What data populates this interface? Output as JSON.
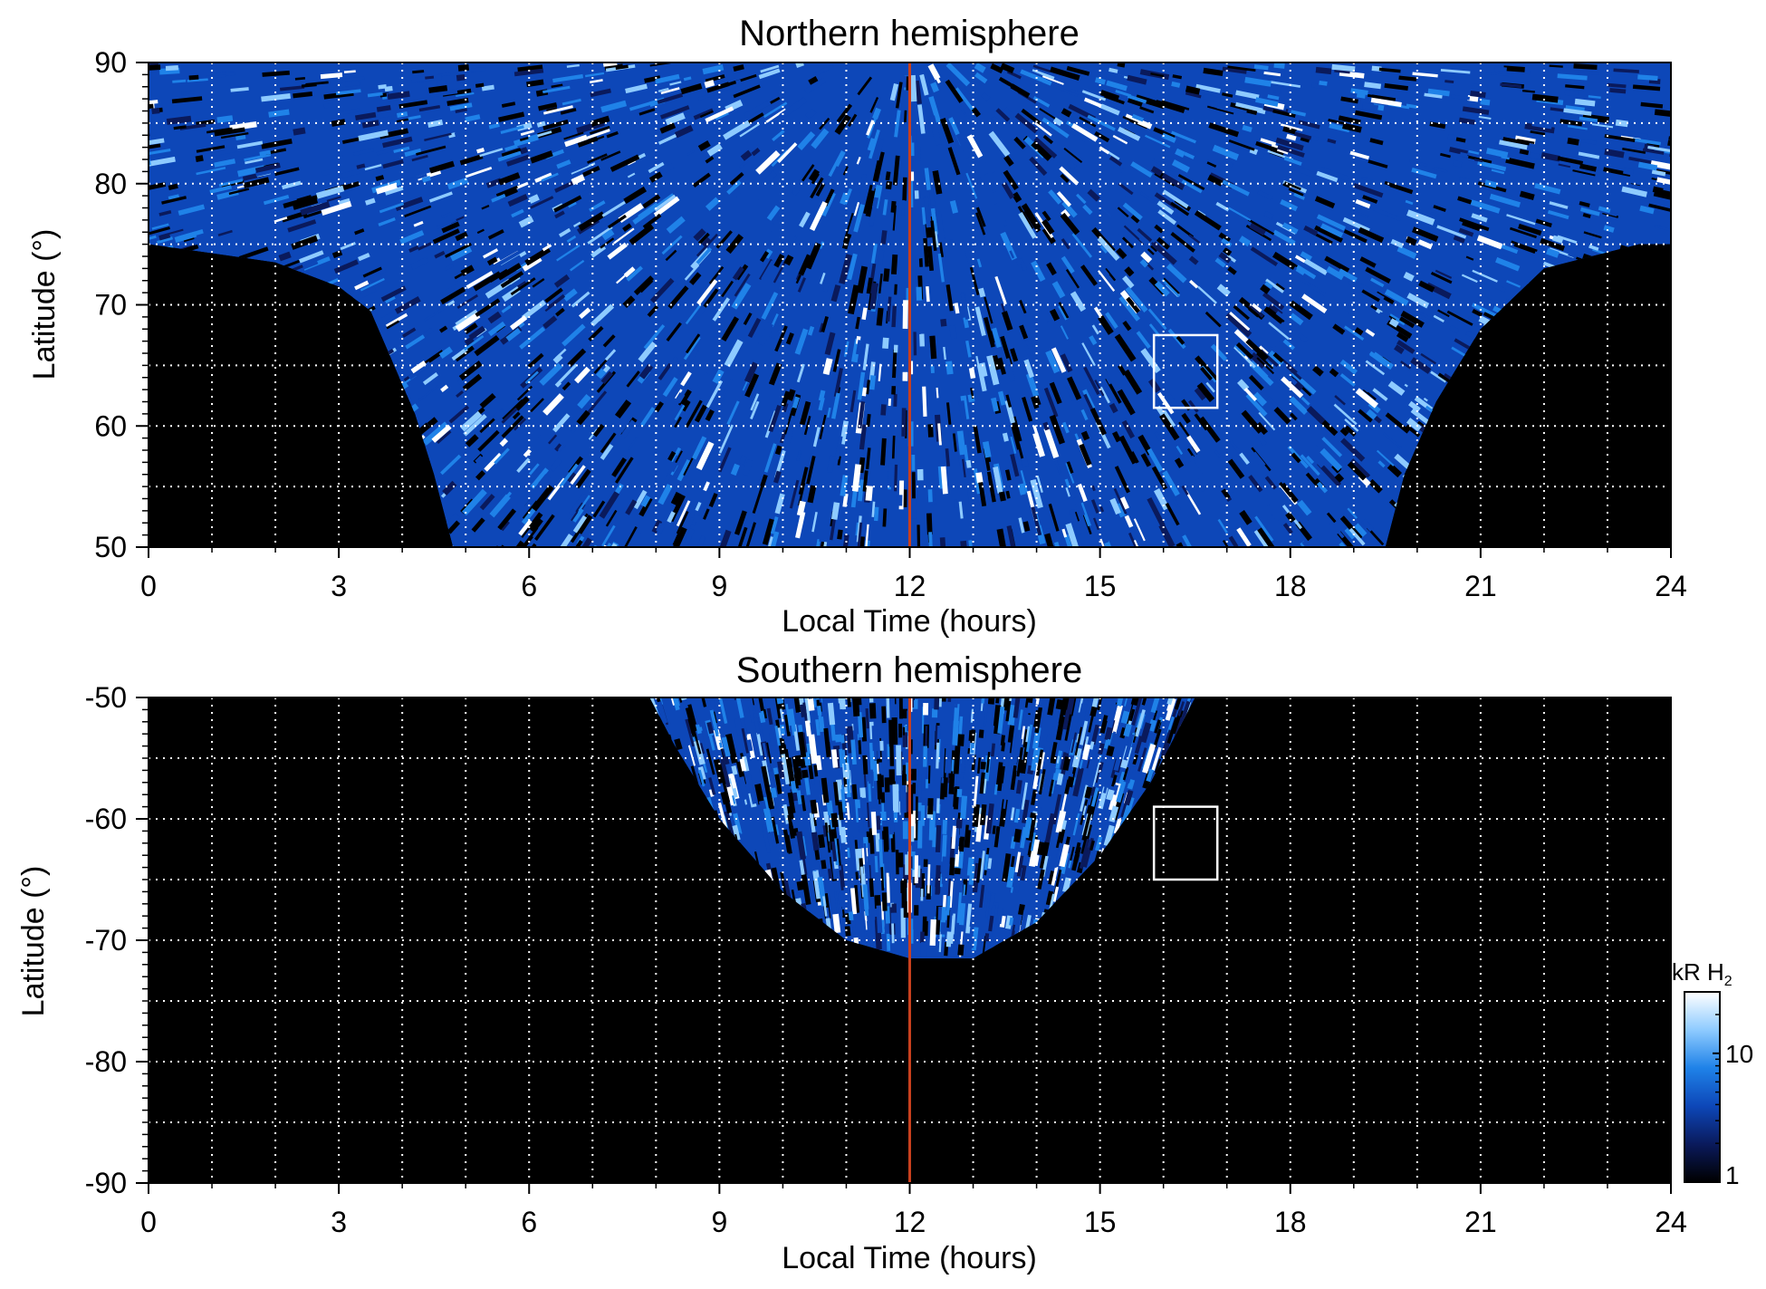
{
  "chart_data": [
    {
      "type": "heatmap",
      "title": "Northern hemisphere",
      "xlabel": "Local Time (hours)",
      "ylabel": "Latitude (°)",
      "xlim": [
        0,
        24
      ],
      "ylim": [
        50,
        90
      ],
      "xticks": [
        "0",
        "3",
        "6",
        "9",
        "12",
        "15",
        "18",
        "21",
        "24"
      ],
      "xtick_values": [
        0,
        3,
        6,
        9,
        12,
        15,
        18,
        21,
        24
      ],
      "yticks": [
        "50",
        "60",
        "70",
        "80",
        "90"
      ],
      "ytick_values": [
        50,
        60,
        70,
        80,
        90
      ],
      "x_dotted_grid_step": 1,
      "y_dotted_grid": [
        55,
        60,
        65,
        70,
        75,
        80,
        85
      ],
      "reference_line_x": 12,
      "reference_line_color": "#c8401e",
      "box": {
        "x": [
          15.85,
          16.85
        ],
        "y": [
          61.5,
          67.5
        ]
      },
      "coverage": "emission fills latitudes >= 75 at all local times; lower edge descends to 50 between about 4.4 and 19.7 h",
      "coverage_curve": [
        [
          0,
          75
        ],
        [
          2,
          73.5
        ],
        [
          3,
          71.5
        ],
        [
          3.5,
          69.5
        ],
        [
          4.2,
          61
        ],
        [
          4.5,
          56
        ],
        [
          4.8,
          50
        ],
        [
          19.5,
          50
        ],
        [
          19.8,
          56
        ],
        [
          20.3,
          62
        ],
        [
          21,
          68
        ],
        [
          22,
          73
        ],
        [
          23.5,
          75
        ],
        [
          24,
          75
        ]
      ]
    },
    {
      "type": "heatmap",
      "title": "Southern hemisphere",
      "xlabel": "Local Time (hours)",
      "ylabel": "Latitude (°)",
      "xlim": [
        0,
        24
      ],
      "ylim": [
        -90,
        -50
      ],
      "xticks": [
        "0",
        "3",
        "6",
        "9",
        "12",
        "15",
        "18",
        "21",
        "24"
      ],
      "xtick_values": [
        0,
        3,
        6,
        9,
        12,
        15,
        18,
        21,
        24
      ],
      "yticks": [
        "-50",
        "-60",
        "-70",
        "-80",
        "-90"
      ],
      "ytick_values": [
        -50,
        -60,
        -70,
        -80,
        -90
      ],
      "x_dotted_grid_step": 1,
      "y_dotted_grid": [
        -55,
        -60,
        -65,
        -70,
        -75,
        -80,
        -85
      ],
      "reference_line_x": 12,
      "reference_line_color": "#c8401e",
      "box": {
        "x": [
          15.85,
          16.85
        ],
        "y": [
          -65,
          -59
        ]
      },
      "coverage": "emission fan between about 7.9 and 16.5 h, reaching down to about -72",
      "coverage_curve": [
        [
          7.9,
          -50
        ],
        [
          8.3,
          -54
        ],
        [
          9,
          -60
        ],
        [
          10,
          -66
        ],
        [
          11,
          -70
        ],
        [
          12,
          -71.5
        ],
        [
          13,
          -71.5
        ],
        [
          14,
          -68.5
        ],
        [
          15,
          -63
        ],
        [
          15.8,
          -57
        ],
        [
          16.5,
          -50
        ]
      ]
    }
  ],
  "colorbar": {
    "label": "kR H",
    "label_subscript": "2",
    "ticks": [
      "10",
      "1"
    ],
    "tick_values": [
      10,
      1
    ],
    "range": [
      1,
      30
    ],
    "scale": "log",
    "colors": [
      "#000000",
      "#0a1a5c",
      "#0d47b8",
      "#1f82e8",
      "#8ecbff",
      "#ffffff"
    ]
  }
}
